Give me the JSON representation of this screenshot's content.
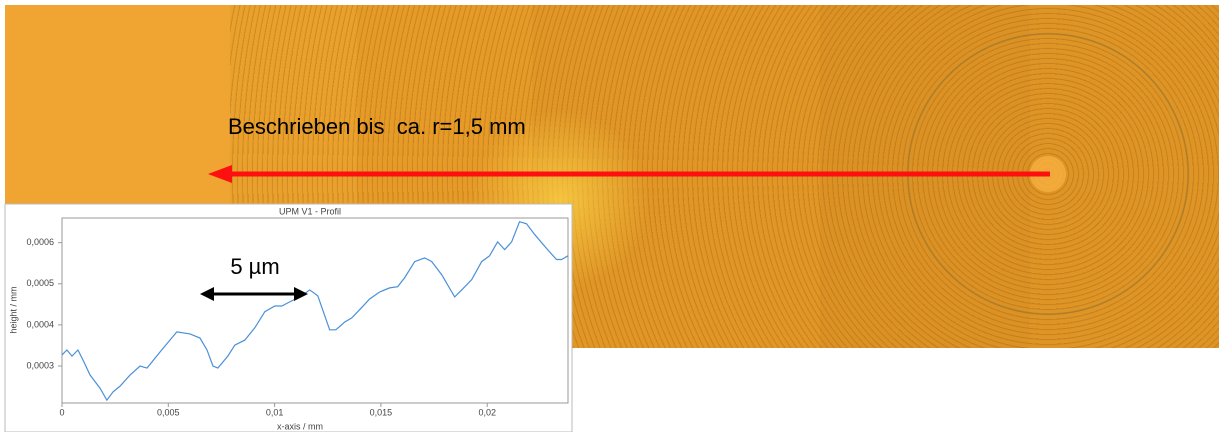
{
  "annotation": "Beschrieben bis  ca. r=1,5 mm",
  "chart_data": {
    "type": "line",
    "title": "UPM V1 - Profil",
    "xlabel": "x-axis / mm",
    "ylabel": "height / mm",
    "annotation": "5 µm",
    "color": "#4a90d9",
    "x": [
      0,
      0.00023,
      0.00047,
      0.00075,
      0.00103,
      0.00132,
      0.00179,
      0.00211,
      0.0024,
      0.00273,
      0.0032,
      0.00367,
      0.004,
      0.00461,
      0.0054,
      0.00602,
      0.00649,
      0.00682,
      0.0071,
      0.00733,
      0.0078,
      0.00813,
      0.0086,
      0.00907,
      0.00954,
      0.01001,
      0.01034,
      0.01071,
      0.01118,
      0.01165,
      0.01203,
      0.01226,
      0.01259,
      0.01288,
      0.0133,
      0.01363,
      0.014,
      0.01447,
      0.01494,
      0.01541,
      0.01579,
      0.01612,
      0.01659,
      0.01706,
      0.01739,
      0.01786,
      0.01847,
      0.0188,
      0.01927,
      0.01974,
      0.02011,
      0.02049,
      0.02082,
      0.02115,
      0.02152,
      0.02185,
      0.02223,
      0.02284,
      0.02326,
      0.0235,
      0.0238
    ],
    "values": [
      0.000327,
      0.000339,
      0.000324,
      0.000339,
      0.00031,
      0.000278,
      0.000246,
      0.000217,
      0.000237,
      0.000251,
      0.000278,
      0.0003,
      0.000295,
      0.000334,
      0.000383,
      0.000378,
      0.000368,
      0.000339,
      0.0003,
      0.000295,
      0.000324,
      0.000351,
      0.000363,
      0.000393,
      0.000432,
      0.000446,
      0.000446,
      0.000456,
      0.000468,
      0.000485,
      0.000471,
      0.000437,
      0.000388,
      0.000388,
      0.000407,
      0.000417,
      0.000437,
      0.000463,
      0.00048,
      0.00049,
      0.000493,
      0.000515,
      0.000554,
      0.000563,
      0.000554,
      0.000522,
      0.000468,
      0.000485,
      0.00051,
      0.000554,
      0.000568,
      0.000602,
      0.000583,
      0.000602,
      0.000651,
      0.000646,
      0.00062,
      0.000583,
      0.000559,
      0.000559,
      0.000568
    ],
    "xlim": [
      0,
      0.0238
    ],
    "ylim": [
      0.00021,
      0.00066
    ],
    "xticks": [
      0,
      {
        "value": 0.005,
        "label": "0,005"
      },
      {
        "value": 0.01,
        "label": "0,01"
      },
      {
        "value": 0.015,
        "label": "0,015"
      },
      {
        "value": 0.02,
        "label": "0,02"
      }
    ],
    "yticks": [
      {
        "value": 0.0003,
        "label": "0,0003"
      },
      {
        "value": 0.0004,
        "label": "0,0004"
      },
      {
        "value": 0.0005,
        "label": "0,0005"
      },
      {
        "value": 0.0006,
        "label": "0,0006"
      }
    ]
  }
}
